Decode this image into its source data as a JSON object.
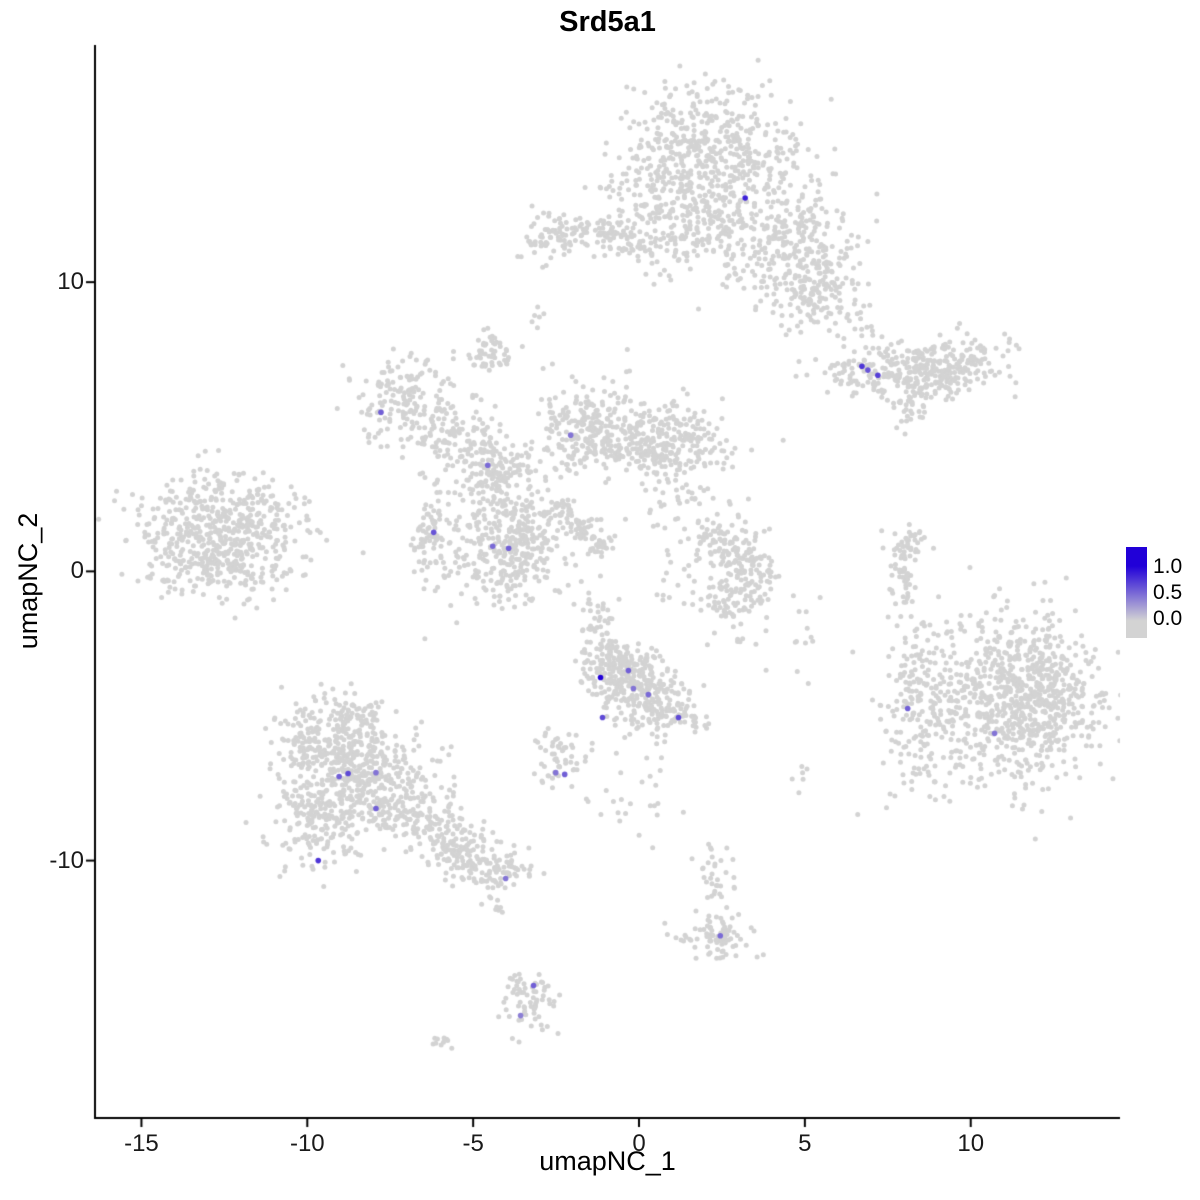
{
  "chart_data": {
    "type": "scatter",
    "title": "Srd5a1",
    "xlabel": "umapNC_1",
    "ylabel": "umapNC_2",
    "xlim": [
      -16.4,
      14.5
    ],
    "ylim": [
      -18.9,
      18.2
    ],
    "grid": false,
    "x_ticks": [
      {
        "label": "-15",
        "value": -15
      },
      {
        "label": "-10",
        "value": -10
      },
      {
        "label": "-5",
        "value": -5
      },
      {
        "label": "0",
        "value": 0
      },
      {
        "label": "5",
        "value": 5
      },
      {
        "label": "10",
        "value": 10
      }
    ],
    "y_ticks": [
      {
        "label": "10",
        "value": 10
      },
      {
        "label": "0",
        "value": 0
      },
      {
        "label": "-10",
        "value": -10
      }
    ],
    "legend": {
      "position": "right",
      "ticks": [
        "1.0",
        "0.5",
        "0.0"
      ],
      "low_color": "#D3D3D3",
      "high_color": "#2100D8"
    },
    "background_clusters": [
      {
        "cx": 2.0,
        "cy": 14.5,
        "sx": 1.4,
        "sy": 1.1,
        "n": 500
      },
      {
        "cx": 1.9,
        "cy": 11.9,
        "sx": 1.1,
        "sy": 0.9,
        "n": 220
      },
      {
        "cx": 4.8,
        "cy": 11.2,
        "sx": 0.9,
        "sy": 1.2,
        "n": 280
      },
      {
        "cx": 5.3,
        "cy": 9.5,
        "sx": 0.55,
        "sy": 0.55,
        "n": 90
      },
      {
        "cx": -2.6,
        "cy": 11.5,
        "sx": 0.55,
        "sy": 0.4,
        "n": 80
      },
      {
        "cx": -0.9,
        "cy": 11.7,
        "sx": 0.5,
        "sy": 0.35,
        "n": 70
      },
      {
        "cx": 0.1,
        "cy": 11.2,
        "sx": 0.4,
        "sy": 0.3,
        "n": 30
      },
      {
        "cx": 0.3,
        "cy": 13.2,
        "sx": 0.7,
        "sy": 0.9,
        "n": 45
      },
      {
        "cx": 7.3,
        "cy": 6.9,
        "sx": 0.9,
        "sy": 0.42,
        "n": 160
      },
      {
        "cx": 9.3,
        "cy": 7.1,
        "sx": 0.85,
        "sy": 0.5,
        "n": 210,
        "rot": 10
      },
      {
        "cx": 8.3,
        "cy": 5.9,
        "sx": 0.35,
        "sy": 0.3,
        "n": 35
      },
      {
        "cx": 6.8,
        "cy": 8.5,
        "sx": 0.5,
        "sy": 0.5,
        "n": 18
      },
      {
        "cx": 7.9,
        "cy": 5.05,
        "sx": 0.1,
        "sy": 0.1,
        "n": 3
      },
      {
        "cx": -13.4,
        "cy": 1.3,
        "sx": 0.95,
        "sy": 1.0,
        "n": 260
      },
      {
        "cx": -11.9,
        "cy": 1.8,
        "sx": 1.0,
        "sy": 0.8,
        "n": 200
      },
      {
        "cx": -12.4,
        "cy": 0.3,
        "sx": 1.2,
        "sy": 0.6,
        "n": 160
      },
      {
        "cx": -7.2,
        "cy": 6.0,
        "sx": 0.75,
        "sy": 0.7,
        "n": 150
      },
      {
        "cx": -4.5,
        "cy": 7.5,
        "sx": 0.35,
        "sy": 0.35,
        "n": 55
      },
      {
        "cx": -5.5,
        "cy": 4.6,
        "sx": 0.7,
        "sy": 0.7,
        "n": 120
      },
      {
        "cx": -4.3,
        "cy": 3.5,
        "sx": 0.7,
        "sy": 0.6,
        "n": 150
      },
      {
        "cx": -3.9,
        "cy": 0.9,
        "sx": 0.85,
        "sy": 1.0,
        "n": 380
      },
      {
        "cx": -6.2,
        "cy": 0.9,
        "sx": 0.4,
        "sy": 0.8,
        "n": 80
      },
      {
        "cx": -1.5,
        "cy": 5.0,
        "sx": 0.8,
        "sy": 0.8,
        "n": 260
      },
      {
        "cx": 0.9,
        "cy": 4.4,
        "sx": 1.0,
        "sy": 0.65,
        "n": 260
      },
      {
        "cx": -2.3,
        "cy": 2.1,
        "sx": 0.25,
        "sy": 0.25,
        "n": 30
      },
      {
        "cx": -1.7,
        "cy": 1.5,
        "sx": 0.25,
        "sy": 0.25,
        "n": 30
      },
      {
        "cx": -1.1,
        "cy": 0.95,
        "sx": 0.25,
        "sy": 0.25,
        "n": 28
      },
      {
        "cx": 1.1,
        "cy": 2.1,
        "sx": 0.8,
        "sy": 0.6,
        "n": 45
      },
      {
        "cx": 2.6,
        "cy": 0.9,
        "sx": 0.5,
        "sy": 0.5,
        "n": 80
      },
      {
        "cx": 3.3,
        "cy": 0.0,
        "sx": 0.45,
        "sy": 0.6,
        "n": 90
      },
      {
        "cx": 2.8,
        "cy": -0.9,
        "sx": 0.5,
        "sy": 0.4,
        "n": 60
      },
      {
        "cx": -0.6,
        "cy": -3.3,
        "sx": 0.5,
        "sy": 0.5,
        "n": 150
      },
      {
        "cx": 0.0,
        "cy": -4.1,
        "sx": 0.7,
        "sy": 0.6,
        "n": 200
      },
      {
        "cx": 1.0,
        "cy": -5.0,
        "sx": 0.5,
        "sy": 0.4,
        "n": 80
      },
      {
        "cx": -1.2,
        "cy": -1.9,
        "sx": 0.3,
        "sy": 0.7,
        "n": 40
      },
      {
        "cx": -2.4,
        "cy": -6.4,
        "sx": 0.4,
        "sy": 0.6,
        "n": 55
      },
      {
        "cx": -8.6,
        "cy": -4.9,
        "sx": 0.7,
        "sy": 0.4,
        "n": 60
      },
      {
        "cx": -9.3,
        "cy": -6.0,
        "sx": 0.9,
        "sy": 0.8,
        "n": 250
      },
      {
        "cx": -8.0,
        "cy": -7.3,
        "sx": 1.0,
        "sy": 0.9,
        "n": 300
      },
      {
        "cx": -9.5,
        "cy": -8.5,
        "sx": 0.8,
        "sy": 0.8,
        "n": 200
      },
      {
        "cx": -6.5,
        "cy": -8.8,
        "sx": 0.9,
        "sy": 0.55,
        "n": 150,
        "rot": -30
      },
      {
        "cx": -5.2,
        "cy": -9.8,
        "sx": 0.6,
        "sy": 0.5,
        "n": 100
      },
      {
        "cx": -4.2,
        "cy": -10.4,
        "sx": 0.4,
        "sy": 0.4,
        "n": 60
      },
      {
        "cx": -4.3,
        "cy": -11.6,
        "sx": 0.15,
        "sy": 0.2,
        "n": 8
      },
      {
        "cx": 10.9,
        "cy": -4.5,
        "sx": 1.6,
        "sy": 1.5,
        "n": 650
      },
      {
        "cx": 11.9,
        "cy": -4.2,
        "sx": 1.0,
        "sy": 1.1,
        "n": 300
      },
      {
        "cx": 8.3,
        "cy": -4.5,
        "sx": 0.45,
        "sy": 1.6,
        "n": 110
      },
      {
        "cx": 8.1,
        "cy": 0.9,
        "sx": 0.3,
        "sy": 0.4,
        "n": 40
      },
      {
        "cx": 8.0,
        "cy": -0.3,
        "sx": 0.25,
        "sy": 0.5,
        "n": 40
      },
      {
        "cx": 4.9,
        "cy": -1.9,
        "sx": 0.3,
        "sy": 0.9,
        "n": 12
      },
      {
        "cx": 4.9,
        "cy": -7.0,
        "sx": 0.15,
        "sy": 0.4,
        "n": 6
      },
      {
        "cx": 3.0,
        "cy": -2.2,
        "sx": 0.7,
        "sy": 0.6,
        "n": 10
      },
      {
        "cx": 2.3,
        "cy": -12.5,
        "sx": 0.5,
        "sy": 0.4,
        "n": 85
      },
      {
        "cx": 2.3,
        "cy": -10.4,
        "sx": 0.35,
        "sy": 0.9,
        "n": 35
      },
      {
        "cx": -3.35,
        "cy": -14.8,
        "sx": 0.35,
        "sy": 0.6,
        "n": 70
      },
      {
        "cx": -5.9,
        "cy": -16.3,
        "sx": 0.2,
        "sy": 0.15,
        "n": 10
      },
      {
        "cx": -3.0,
        "cy": 8.8,
        "sx": 0.2,
        "sy": 0.3,
        "n": 6
      },
      {
        "cx": 0.0,
        "cy": -7.8,
        "sx": 0.8,
        "sy": 0.9,
        "n": 25
      },
      {
        "cx": 1.2,
        "cy": -0.7,
        "sx": 0.5,
        "sy": 0.4,
        "n": 15
      }
    ],
    "expressing_cells": [
      {
        "x": 3.2,
        "y": 12.91,
        "value": 0.85
      },
      {
        "x": 6.72,
        "y": 7.09,
        "value": 0.75
      },
      {
        "x": 6.9,
        "y": 6.96,
        "value": 0.6
      },
      {
        "x": 7.2,
        "y": 6.78,
        "value": 0.7
      },
      {
        "x": -7.78,
        "y": 5.5,
        "value": 0.55
      },
      {
        "x": -2.06,
        "y": 4.71,
        "value": 0.45
      },
      {
        "x": -4.56,
        "y": 3.67,
        "value": 0.5
      },
      {
        "x": -6.19,
        "y": 1.35,
        "value": 0.6
      },
      {
        "x": -4.41,
        "y": 0.87,
        "value": 0.5
      },
      {
        "x": -3.93,
        "y": 0.8,
        "value": 0.55
      },
      {
        "x": -1.16,
        "y": -3.67,
        "value": 1.0
      },
      {
        "x": -0.32,
        "y": -3.43,
        "value": 0.55
      },
      {
        "x": -0.17,
        "y": -4.05,
        "value": 0.45
      },
      {
        "x": 0.28,
        "y": -4.26,
        "value": 0.5
      },
      {
        "x": -1.1,
        "y": -5.05,
        "value": 0.65
      },
      {
        "x": 1.19,
        "y": -5.05,
        "value": 0.65
      },
      {
        "x": -2.51,
        "y": -6.96,
        "value": 0.45
      },
      {
        "x": -2.24,
        "y": -7.02,
        "value": 0.55
      },
      {
        "x": -8.77,
        "y": -6.99,
        "value": 0.65
      },
      {
        "x": -9.04,
        "y": -7.09,
        "value": 0.55
      },
      {
        "x": -7.93,
        "y": -6.96,
        "value": 0.45
      },
      {
        "x": -7.93,
        "y": -8.2,
        "value": 0.55
      },
      {
        "x": -9.67,
        "y": -10.0,
        "value": 0.75
      },
      {
        "x": -4.02,
        "y": -10.62,
        "value": 0.45
      },
      {
        "x": 2.45,
        "y": -12.6,
        "value": 0.5
      },
      {
        "x": -3.18,
        "y": -14.32,
        "value": 0.55
      },
      {
        "x": -3.57,
        "y": -15.36,
        "value": 0.4
      },
      {
        "x": 8.1,
        "y": -4.74,
        "value": 0.55
      },
      {
        "x": 10.72,
        "y": -5.6,
        "value": 0.45
      }
    ]
  }
}
